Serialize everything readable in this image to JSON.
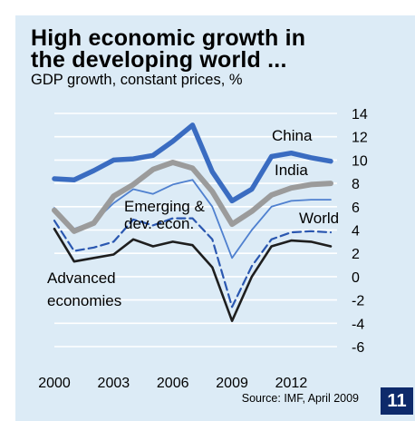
{
  "title_line1": "High economic growth in",
  "title_line2": "the developing world ...",
  "subtitle": "GDP growth, constant prices, %",
  "source": "Source: IMF, April 2009",
  "page_number": "11",
  "colors": {
    "background": "#dcebf6",
    "china": "#3a6cc1",
    "india": "#9b9b9b",
    "emerging": "#4f80cf",
    "world": "#2a57b0",
    "advanced": "#1e1e1e",
    "badge": "#0e2a6b"
  },
  "chart_data": {
    "type": "line",
    "x": [
      2000,
      2001,
      2002,
      2003,
      2004,
      2005,
      2006,
      2007,
      2008,
      2009,
      2010,
      2011,
      2012,
      2013,
      2014
    ],
    "x_ticks": [
      "2000",
      "2003",
      "2006",
      "2009",
      "2012"
    ],
    "y_ticks": [
      "14",
      "12",
      "10",
      "8",
      "6",
      "4",
      "2",
      "0",
      "-2",
      "-4",
      "-6"
    ],
    "ylim": [
      -6,
      14
    ],
    "grid": true,
    "series": [
      {
        "name": "China",
        "label_lines": [
          "China"
        ],
        "style": "thick",
        "values": [
          8.4,
          8.3,
          9.1,
          10.0,
          10.1,
          10.4,
          11.6,
          13.0,
          9.0,
          6.5,
          7.5,
          10.3,
          10.6,
          10.2,
          9.9
        ]
      },
      {
        "name": "India",
        "label_lines": [
          "India"
        ],
        "style": "medium",
        "values": [
          5.7,
          3.9,
          4.6,
          6.9,
          7.9,
          9.2,
          9.8,
          9.3,
          7.3,
          4.5,
          5.6,
          7.0,
          7.6,
          7.9,
          8.0
        ]
      },
      {
        "name": "Emerging & dev. econ.",
        "label_lines": [
          "Emerging &",
          "dev. econ."
        ],
        "style": "thin",
        "values": [
          5.9,
          4.1,
          4.7,
          6.3,
          7.5,
          7.1,
          7.9,
          8.3,
          6.0,
          1.6,
          4.0,
          6.0,
          6.5,
          6.6,
          6.6
        ]
      },
      {
        "name": "World",
        "label_lines": [
          "World"
        ],
        "style": "dashed",
        "values": [
          4.8,
          2.2,
          2.5,
          3.0,
          4.9,
          4.4,
          5.0,
          5.0,
          3.2,
          -2.6,
          0.9,
          3.2,
          3.8,
          3.9,
          3.8
        ]
      },
      {
        "name": "Advanced economies",
        "label_lines": [
          "Advanced",
          "economies"
        ],
        "style": "dark",
        "values": [
          4.1,
          1.3,
          1.6,
          1.9,
          3.2,
          2.6,
          3.0,
          2.7,
          0.8,
          -3.8,
          0.0,
          2.6,
          3.1,
          3.0,
          2.6
        ]
      }
    ]
  }
}
